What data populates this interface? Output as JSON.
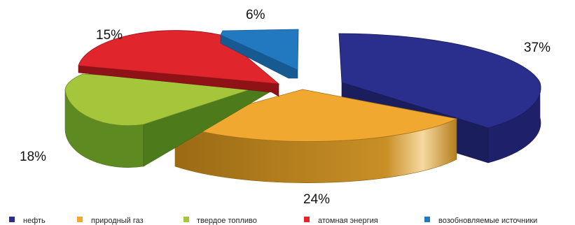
{
  "chart_data": {
    "type": "pie",
    "title": "",
    "series": [
      {
        "name": "нефть",
        "value": 37,
        "label": "37%",
        "color": "#2a2e8c"
      },
      {
        "name": "природный газ",
        "value": 24,
        "label": "24%",
        "color": "#f0a830"
      },
      {
        "name": "твердое топливо",
        "value": 18,
        "label": "18%",
        "color": "#a5c63b"
      },
      {
        "name": "атомная энергия",
        "value": 15,
        "label": "15%",
        "color": "#e0252c"
      },
      {
        "name": "возобновляемые источники",
        "value": 6,
        "label": "6%",
        "color": "#2379c0"
      }
    ],
    "legend_position": "bottom",
    "style": "3d-exploded"
  }
}
